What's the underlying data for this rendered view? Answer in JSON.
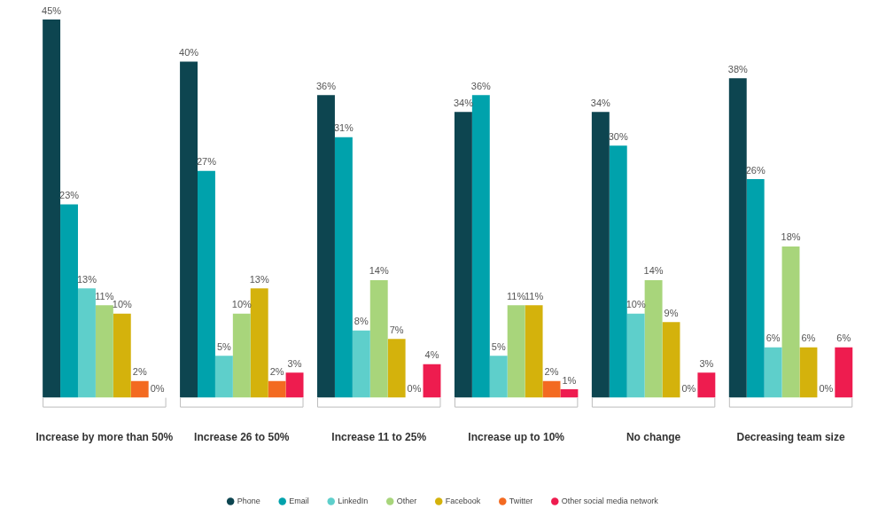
{
  "chart_data": {
    "type": "bar",
    "categories": [
      "Increase by more than 50%",
      "Increase 26 to 50%",
      "Increase 11 to 25%",
      "Increase up to 10%",
      "No change",
      "Decreasing team size"
    ],
    "series": [
      {
        "name": "Phone",
        "color": "#0d4550",
        "values": [
          45,
          40,
          36,
          34,
          34,
          38
        ],
        "value_labels": [
          "45%",
          "40%",
          "36%",
          "34%",
          "34%",
          "38%"
        ]
      },
      {
        "name": "Email",
        "color": "#00a2ac",
        "values": [
          23,
          27,
          31,
          36,
          30,
          26
        ],
        "value_labels": [
          "23%",
          "27%",
          "31%",
          "36%",
          "30%",
          "26%"
        ]
      },
      {
        "name": "LinkedIn",
        "color": "#5ecfcb",
        "values": [
          13,
          5,
          8,
          5,
          10,
          6
        ],
        "value_labels": [
          "13%",
          "5%",
          "8%",
          "5%",
          "10%",
          "6%"
        ]
      },
      {
        "name": "Other",
        "color": "#a8d57b",
        "values": [
          11,
          10,
          14,
          11,
          14,
          18
        ],
        "value_labels": [
          "11%",
          "10%",
          "14%",
          "11%",
          "14%",
          "18%"
        ]
      },
      {
        "name": "Facebook",
        "color": "#d4b20c",
        "values": [
          10,
          13,
          7,
          11,
          9,
          6
        ],
        "value_labels": [
          "10%",
          "13%",
          "7%",
          "11%",
          "9%",
          "6%"
        ]
      },
      {
        "name": "Twitter",
        "color": "#f36a21",
        "values": [
          2,
          2,
          0,
          2,
          0,
          0
        ],
        "value_labels": [
          "2%",
          "2%",
          "0%",
          "2%",
          "0%",
          "0%"
        ]
      },
      {
        "name": "Other social media network",
        "color": "#ee1c4f",
        "values": [
          0,
          3,
          4,
          1,
          3,
          6
        ],
        "value_labels": [
          "0%",
          "3%",
          "4%",
          "1%",
          "3%",
          "6%"
        ]
      }
    ],
    "ylim": [
      0,
      45
    ],
    "data_labels": true,
    "tick_labels": "x",
    "legend": "bottom",
    "grid": false
  }
}
